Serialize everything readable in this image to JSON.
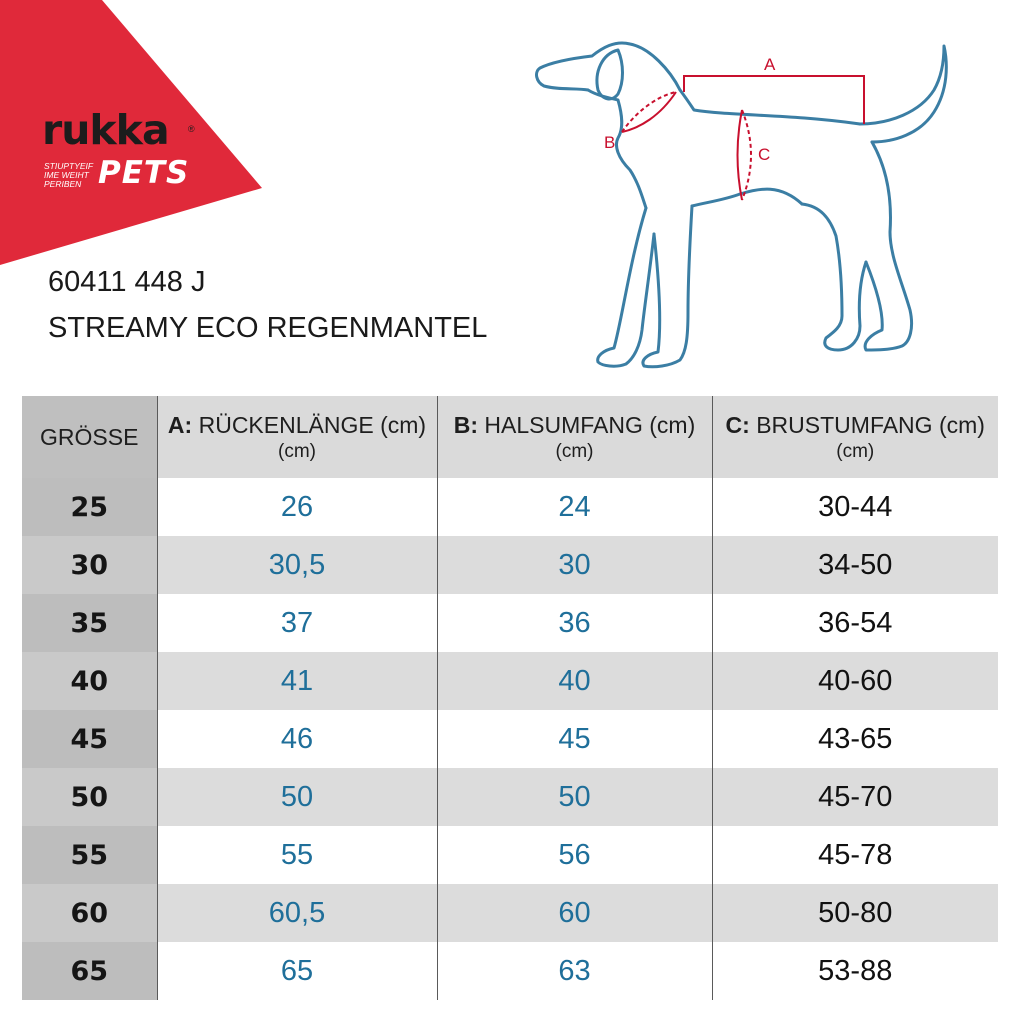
{
  "brand": {
    "name": "rukka",
    "registered_mark": "®",
    "sub_name": "PETS",
    "tagline": "STIUPTYEIF IME WEIHT PERIBEN",
    "accent_color": "#e0293a"
  },
  "product": {
    "code": "60411 448 J",
    "name": "STREAMY ECO REGENMANTEL"
  },
  "diagram": {
    "outline_color": "#3b7ea4",
    "marker_color": "#c8102e",
    "labels": {
      "a": "A",
      "b": "B",
      "c": "C"
    }
  },
  "table": {
    "headers": {
      "size": "GRÖSSE",
      "back_prefix": "A:",
      "back_label": "RÜCKENLÄNGE (cm)",
      "back_unit": "(cm)",
      "neck_prefix": "B:",
      "neck_label": "HALSUMFANG (cm)",
      "neck_unit": "(cm)",
      "chest_prefix": "C:",
      "chest_label": "BRUSTUMFANG (cm)",
      "chest_unit": "(cm)"
    },
    "rows": [
      {
        "size": "25",
        "back": "26",
        "neck": "24",
        "chest": "30-44"
      },
      {
        "size": "30",
        "back": "30,5",
        "neck": "30",
        "chest": "34-50"
      },
      {
        "size": "35",
        "back": "37",
        "neck": "36",
        "chest": "36-54"
      },
      {
        "size": "40",
        "back": "41",
        "neck": "40",
        "chest": "40-60"
      },
      {
        "size": "45",
        "back": "46",
        "neck": "45",
        "chest": "43-65"
      },
      {
        "size": "50",
        "back": "50",
        "neck": "50",
        "chest": "45-70"
      },
      {
        "size": "55",
        "back": "55",
        "neck": "56",
        "chest": "45-78"
      },
      {
        "size": "60",
        "back": "60,5",
        "neck": "60",
        "chest": "50-80"
      },
      {
        "size": "65",
        "back": "65",
        "neck": "63",
        "chest": "53-88"
      }
    ],
    "value_color": "#1f6f9a"
  }
}
